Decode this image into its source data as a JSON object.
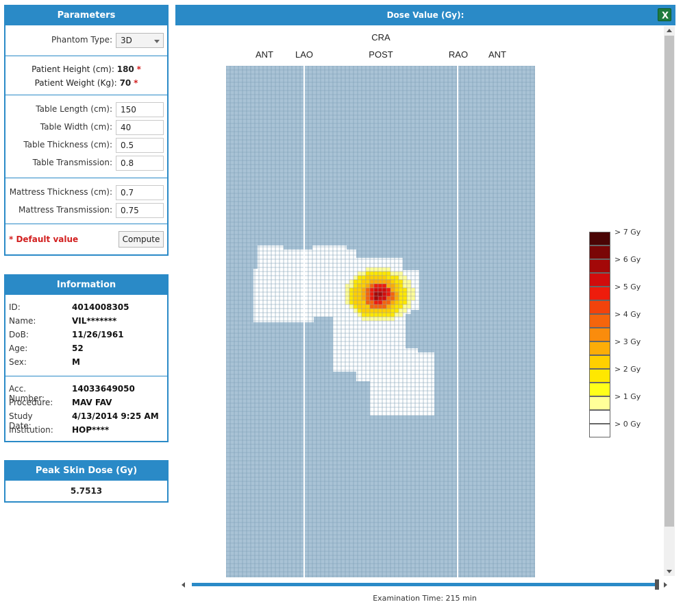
{
  "parameters": {
    "title": "Parameters",
    "phantom_type_label": "Phantom Type:",
    "phantom_type_value": "3D",
    "patient_height_label": "Patient Height (cm):",
    "patient_height_value": "180",
    "patient_weight_label": "Patient Weight (Kg):",
    "patient_weight_value": "70",
    "required_star": "*",
    "table_length_label": "Table Length (cm):",
    "table_length_value": "150",
    "table_width_label": "Table Width (cm):",
    "table_width_value": "40",
    "table_thickness_label": "Table Thickness (cm):",
    "table_thickness_value": "0.5",
    "table_transmission_label": "Table Transmission:",
    "table_transmission_value": "0.8",
    "mattress_thickness_label": "Mattress Thickness (cm):",
    "mattress_thickness_value": "0.7",
    "mattress_transmission_label": "Mattress Transmission:",
    "mattress_transmission_value": "0.75",
    "default_value_note": "* Default value",
    "compute_label": "Compute"
  },
  "information": {
    "title": "Information",
    "id_label": "ID:",
    "id_value": "4014008305",
    "name_label": "Name:",
    "name_value": "VIL*******",
    "dob_label": "DoB:",
    "dob_value": "11/26/1961",
    "age_label": "Age:",
    "age_value": "52",
    "sex_label": "Sex:",
    "sex_value": "M",
    "acc_label": "Acc. Number:",
    "acc_value": "14033649050",
    "procedure_label": "Procedure:",
    "procedure_value": "MAV FAV",
    "study_date_label": "Study Date:",
    "study_date_value": "4/13/2014 9:25 AM",
    "institution_label": "Institution:",
    "institution_value": "HOP****"
  },
  "peak_skin_dose": {
    "title": "Peak Skin Dose (Gy)",
    "value": "5.7513"
  },
  "dose_view": {
    "title": "Dose Value (Gy):",
    "export_icon": "excel-export-icon",
    "orientation_top": "CRA",
    "orientation_labels": {
      "ant_left": "ANT",
      "lao": "LAO",
      "post": "POST",
      "rao": "RAO",
      "ant_right": "ANT"
    },
    "examination_time": "Examination Time: 215 min",
    "colors": {
      "background_cell": "#a9c3d6",
      "grid_line": "#7f9eb4",
      "exposed_cell": "#ffffff",
      "exposed_grid": "#9a9a9a"
    }
  },
  "legend": [
    {
      "label": "> 7 Gy",
      "color": "#4a0505"
    },
    {
      "label": "",
      "color": "#7a0606"
    },
    {
      "label": "> 6 Gy",
      "color": "#a30808"
    },
    {
      "label": "",
      "color": "#d10c0c"
    },
    {
      "label": "> 5 Gy",
      "color": "#ee1c0c"
    },
    {
      "label": "",
      "color": "#f2430c"
    },
    {
      "label": "> 4 Gy",
      "color": "#f5650c"
    },
    {
      "label": "",
      "color": "#fa8c0c"
    },
    {
      "label": "> 3 Gy",
      "color": "#fcad08"
    },
    {
      "label": "",
      "color": "#ffd000"
    },
    {
      "label": "> 2 Gy",
      "color": "#ffe800"
    },
    {
      "label": "",
      "color": "#ffff1a"
    },
    {
      "label": "> 1 Gy",
      "color": "#ffff99"
    },
    {
      "label": "",
      "color": "#ffffff"
    },
    {
      "label": "> 0 Gy",
      "color": "#ffffff"
    }
  ]
}
